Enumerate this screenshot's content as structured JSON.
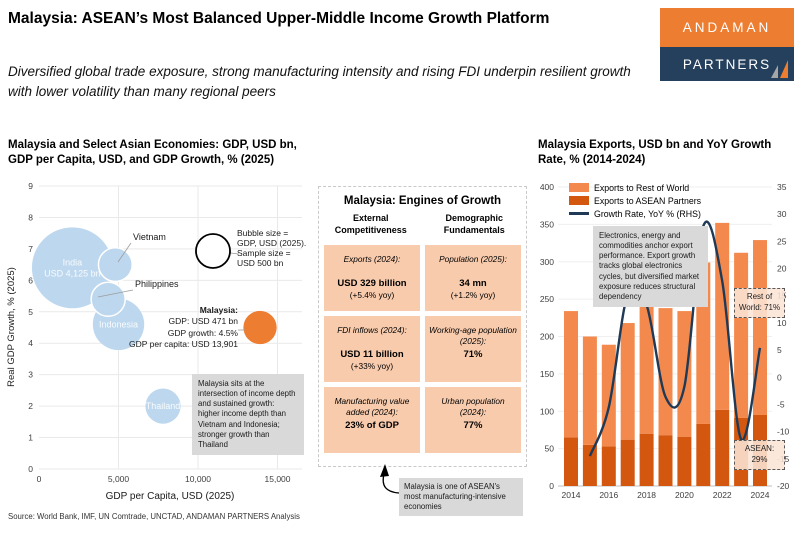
{
  "header": {
    "title": "Malaysia: ASEAN’s Most Balanced Upper-Middle Income Growth Platform",
    "subtitle": "Diversified global trade exposure, strong manufacturing intensity and rising FDI underpin resilient growth with lower volatility than many regional peers"
  },
  "logo": {
    "line1": "ANDAMAN",
    "line2": "PARTNERS"
  },
  "palette": {
    "accent_orange": "#ED7D31",
    "bar_light_orange": "#F4894D",
    "bar_dark_orange": "#D4570F",
    "line_navy": "#1F3A57",
    "bubble_blue": "#BDD7EE",
    "cell_peach": "#F8CBAD",
    "note_gray": "#D9D9D9",
    "logo_navy": "#24405C"
  },
  "chart_data": [
    {
      "type": "scatter",
      "title": "Malaysia and Select Asian Economies: GDP, USD bn,\nGDP per Capita, USD, and GDP Growth, % (2025)",
      "xlabel": "GDP per Capita, USD (2025)",
      "ylabel": "Real GDP Growth, % (2025)",
      "xlim": [
        0,
        16500
      ],
      "ylim": [
        0,
        9
      ],
      "xticks": [
        {
          "v": 0,
          "label": "0"
        },
        {
          "v": 5000,
          "label": "5,000"
        },
        {
          "v": 10000,
          "label": "10,000"
        },
        {
          "v": 15000,
          "label": "15,000"
        }
      ],
      "yticks": [
        0,
        1,
        2,
        3,
        4,
        5,
        6,
        7,
        8,
        9
      ],
      "grid": true,
      "bubbles": [
        {
          "name": "India",
          "label": "India\nUSD 4,125 bn",
          "gdp_per_capita": 2100,
          "gdp_growth": 6.4,
          "gdp_usd_bn": 4125,
          "color": "#BDD7EE"
        },
        {
          "name": "Indonesia",
          "label": "Indonesia",
          "gdp_per_capita": 5000,
          "gdp_growth": 4.6,
          "gdp_usd_bn": 1430,
          "color": "#BDD7EE"
        },
        {
          "name": "Vietnam",
          "label": "Vietnam",
          "gdp_per_capita": 4800,
          "gdp_growth": 6.5,
          "gdp_usd_bn": 490,
          "color": "#BDD7EE"
        },
        {
          "name": "Philippines",
          "label": "Philippines",
          "gdp_per_capita": 4350,
          "gdp_growth": 5.4,
          "gdp_usd_bn": 500,
          "color": "#BDD7EE"
        },
        {
          "name": "Thailand",
          "label": "Thailand",
          "gdp_per_capita": 7800,
          "gdp_growth": 2.0,
          "gdp_usd_bn": 545,
          "color": "#BDD7EE"
        },
        {
          "name": "Malaysia",
          "label": "",
          "gdp_per_capita": 13901,
          "gdp_growth": 4.5,
          "gdp_usd_bn": 471,
          "color": "#ED7D31"
        }
      ],
      "size_legend": {
        "sample_gdp_bn": 500,
        "text": "Bubble size =\nGDP, USD (2025).\nSample size =\nUSD 500 bn"
      },
      "malaysia_callout": {
        "title": "Malaysia:",
        "lines": "GDP: USD 471 bn\nGDP growth: 4.5%\nGDP per capita: USD 13,901"
      },
      "note_box": "Malaysia sits at the intersection of income depth and sustained growth: higher income depth than Vietnam and Indonesia; stronger growth than Thailand"
    },
    {
      "type": "bar",
      "title": "Malaysia Exports, USD bn and YoY Growth\nRate, % (2014-2024)",
      "categories": [
        2014,
        2015,
        2016,
        2017,
        2018,
        2019,
        2020,
        2021,
        2022,
        2023,
        2024
      ],
      "series": [
        {
          "name": "Exports to ASEAN Partners",
          "color": "#D4570F",
          "values": [
            65,
            55,
            53,
            62,
            70,
            68,
            66,
            83,
            102,
            91,
            95
          ]
        },
        {
          "name": "Exports to Rest of World",
          "color": "#F4894D",
          "values": [
            169,
            145,
            136,
            156,
            177,
            170,
            168,
            216,
            250,
            221,
            234
          ]
        }
      ],
      "line": {
        "name": "Growth Rate, YoY % (RHS)",
        "color": "#1F3A57",
        "values": [
          null,
          -14.5,
          -5.5,
          15.3,
          13.3,
          -3.6,
          -1.7,
          27.8,
          17.7,
          -11.4,
          5.4
        ]
      },
      "ylim_left": [
        0,
        400
      ],
      "ylim_right": [
        -20,
        35
      ],
      "yticks_left": [
        0,
        50,
        100,
        150,
        200,
        250,
        300,
        350,
        400
      ],
      "yticks_right": [
        -20,
        -15,
        -10,
        -5,
        0,
        5,
        10,
        15,
        20,
        25,
        30,
        35
      ],
      "xtick_labels": [
        2014,
        2016,
        2018,
        2020,
        2022,
        2024
      ],
      "legend_position": "top-left",
      "note_box": "Electronics, energy and commodities anchor export performance. Export growth tracks global electronics cycles, but diversified market exposure reduces structural dependency",
      "annotations": [
        {
          "text": "Rest of World: 71%"
        },
        {
          "text": "ASEAN: 29%"
        }
      ]
    }
  ],
  "engines": {
    "title": "Malaysia: Engines of Growth",
    "columns": [
      {
        "label": "External\nCompetitiveness"
      },
      {
        "label": "Demographic\nFundamentals"
      }
    ],
    "cells": [
      {
        "title": "Exports (2024):",
        "value": "USD 329 billion",
        "note": "(+5.4% yoy)"
      },
      {
        "title": "Population (2025):",
        "value": "34 mn",
        "note": "(+1.2% yoy)"
      },
      {
        "title": "FDI inflows (2024):",
        "value": "USD 11 billion",
        "note": "(+33% yoy)"
      },
      {
        "title": "Working-age population (2025):",
        "value": "71%",
        "note": ""
      },
      {
        "title": "Manufacturing value added (2024):",
        "value": "23% of GDP",
        "note": ""
      },
      {
        "title": "Urban population (2024):",
        "value": "77%",
        "note": ""
      }
    ],
    "callout": "Malaysia is one of ASEAN's most manufacturing-intensive economies"
  },
  "footer": {
    "source": "Source: World Bank, IMF, UN Comtrade, UNCTAD, ANDAMAN PARTNERS Analysis"
  }
}
